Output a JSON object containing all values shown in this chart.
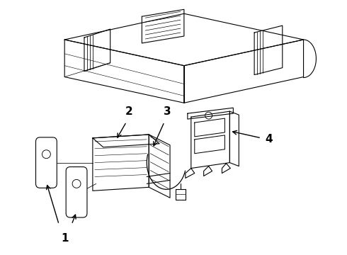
{
  "bg_color": "#ffffff",
  "line_color": "#000000",
  "line_width": 0.8,
  "label_color": "#000000"
}
